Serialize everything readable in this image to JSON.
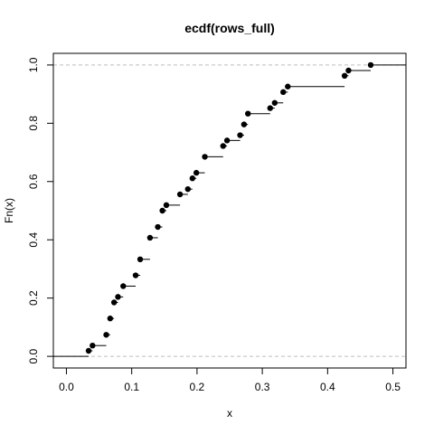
{
  "chart_data": {
    "type": "scatter",
    "subtype": "ecdf-step",
    "title": "ecdf(rows_full)",
    "xlabel": "x",
    "ylabel": "Fn(x)",
    "xlim": [
      -0.02,
      0.52
    ],
    "ylim": [
      -0.04,
      1.04
    ],
    "x_ticks": [
      0.0,
      0.1,
      0.2,
      0.3,
      0.4,
      0.5
    ],
    "x_tick_labels": [
      "0.0",
      "0.1",
      "0.2",
      "0.3",
      "0.4",
      "0.5"
    ],
    "y_ticks": [
      0.0,
      0.2,
      0.4,
      0.6,
      0.8,
      1.0
    ],
    "y_tick_labels": [
      "0.0",
      "0.2",
      "0.4",
      "0.6",
      "0.8",
      "1.0"
    ],
    "reference_lines": [
      0,
      1
    ],
    "grid": false,
    "x": [
      0.034,
      0.04,
      0.061,
      0.067,
      0.073,
      0.079,
      0.087,
      0.106,
      0.113,
      0.128,
      0.14,
      0.147,
      0.153,
      0.174,
      0.186,
      0.193,
      0.199,
      0.212,
      0.24,
      0.246,
      0.266,
      0.272,
      0.278,
      0.312,
      0.319,
      0.332,
      0.339,
      0.426,
      0.432,
      0.466
    ],
    "y": [
      0.019,
      0.037,
      0.074,
      0.13,
      0.185,
      0.204,
      0.241,
      0.278,
      0.333,
      0.407,
      0.444,
      0.5,
      0.519,
      0.556,
      0.574,
      0.611,
      0.63,
      0.685,
      0.722,
      0.741,
      0.759,
      0.796,
      0.833,
      0.852,
      0.87,
      0.907,
      0.926,
      0.963,
      0.981,
      1.0
    ],
    "colors": {
      "points": "#000000",
      "steps": "#000000",
      "reference": "#bebebe",
      "frame": "#000000"
    }
  }
}
